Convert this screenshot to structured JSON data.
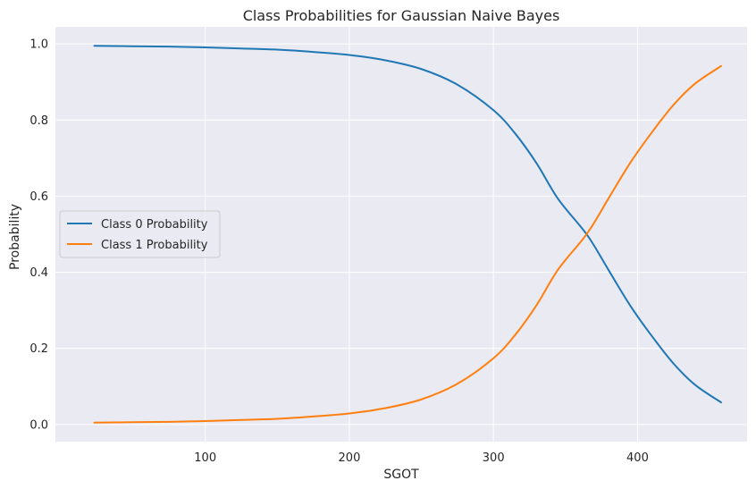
{
  "chart_data": {
    "type": "line",
    "title": "Class Probabilities for Gaussian Naive Bayes",
    "xlabel": "SGOT",
    "ylabel": "Probability",
    "xlim": [
      -4,
      476
    ],
    "ylim": [
      -0.045,
      1.045
    ],
    "xticks": [
      100,
      200,
      300,
      400
    ],
    "yticks": [
      0.0,
      0.2,
      0.4,
      0.6,
      0.8,
      1.0
    ],
    "grid": true,
    "legend_position": "center-left",
    "background": "#eaeaf2",
    "series": [
      {
        "name": "Class 0 Probability",
        "color": "#1f77b4",
        "x": [
          23,
          50,
          75,
          100,
          125,
          150,
          175,
          200,
          225,
          250,
          275,
          300,
          315,
          330,
          345,
          365,
          380,
          395,
          410,
          425,
          440,
          458
        ],
        "y": [
          0.995,
          0.994,
          0.993,
          0.991,
          0.988,
          0.985,
          0.979,
          0.971,
          0.957,
          0.934,
          0.893,
          0.826,
          0.765,
          0.686,
          0.592,
          0.498,
          0.405,
          0.312,
          0.232,
          0.16,
          0.104,
          0.058
        ]
      },
      {
        "name": "Class 1 Probability",
        "color": "#ff7f0e",
        "x": [
          23,
          50,
          75,
          100,
          125,
          150,
          175,
          200,
          225,
          250,
          275,
          300,
          315,
          330,
          345,
          365,
          380,
          395,
          410,
          425,
          440,
          458
        ],
        "y": [
          0.005,
          0.006,
          0.007,
          0.009,
          0.012,
          0.015,
          0.021,
          0.029,
          0.043,
          0.066,
          0.107,
          0.174,
          0.235,
          0.314,
          0.408,
          0.502,
          0.595,
          0.688,
          0.768,
          0.84,
          0.896,
          0.942
        ]
      }
    ]
  }
}
